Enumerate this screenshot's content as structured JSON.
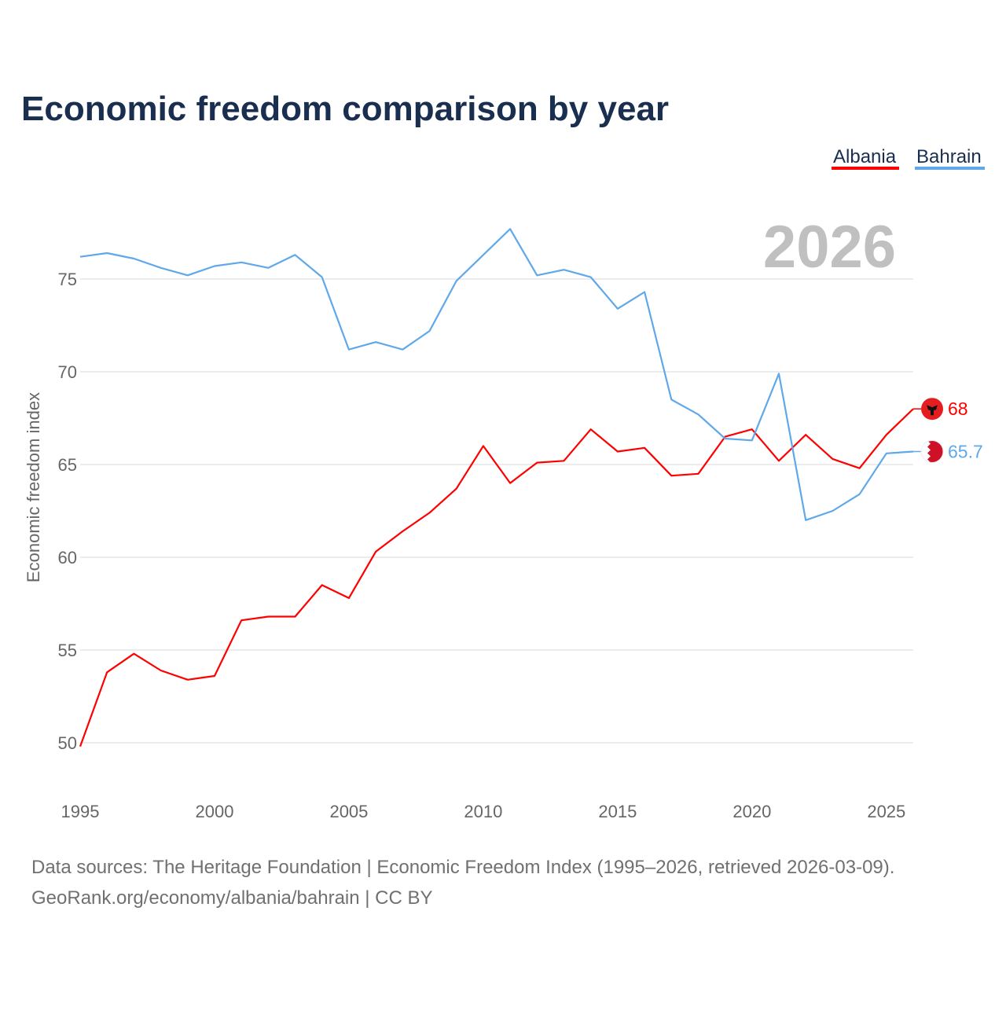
{
  "chart_data": {
    "type": "line",
    "title": "Economic freedom comparison by year",
    "xlabel": "",
    "ylabel": "Economic freedom index",
    "xlim": [
      1995,
      2026
    ],
    "ylim": [
      48,
      78.5
    ],
    "grid": true,
    "legend_position": "top-right",
    "current_year_label": "2026",
    "x": [
      1995,
      1996,
      1997,
      1998,
      1999,
      2000,
      2001,
      2002,
      2003,
      2004,
      2005,
      2006,
      2007,
      2008,
      2009,
      2010,
      2011,
      2012,
      2013,
      2014,
      2015,
      2016,
      2017,
      2018,
      2019,
      2020,
      2021,
      2022,
      2023,
      2024,
      2025,
      2026
    ],
    "x_ticks": [
      1995,
      2000,
      2005,
      2010,
      2015,
      2020,
      2025
    ],
    "y_ticks": [
      50,
      55,
      60,
      65,
      70,
      75
    ],
    "series": [
      {
        "name": "Albania",
        "color": "#ff0000",
        "end_label": "68",
        "values": [
          49.8,
          53.8,
          54.8,
          53.9,
          53.4,
          53.6,
          56.6,
          56.8,
          56.8,
          58.5,
          57.8,
          60.3,
          61.4,
          62.4,
          63.7,
          66.0,
          64.0,
          65.1,
          65.2,
          66.9,
          65.7,
          65.9,
          64.4,
          64.5,
          66.5,
          66.9,
          65.2,
          66.6,
          65.3,
          64.8,
          66.6,
          68.0
        ]
      },
      {
        "name": "Bahrain",
        "color": "#5fa8ea",
        "end_label": "65.7",
        "values": [
          76.2,
          76.4,
          76.1,
          75.6,
          75.2,
          75.7,
          75.9,
          75.6,
          76.3,
          75.1,
          71.2,
          71.6,
          71.2,
          72.2,
          74.9,
          76.3,
          77.7,
          75.2,
          75.5,
          75.1,
          73.4,
          74.3,
          68.5,
          67.7,
          66.4,
          66.3,
          69.9,
          62.0,
          62.5,
          63.4,
          65.6,
          65.7
        ]
      }
    ]
  },
  "footer": {
    "line1": "Data sources: The Heritage Foundation | Economic Freedom Index (1995–2026, retrieved 2026-03-09).",
    "line2": "GeoRank.org/economy/albania/bahrain | CC BY"
  }
}
